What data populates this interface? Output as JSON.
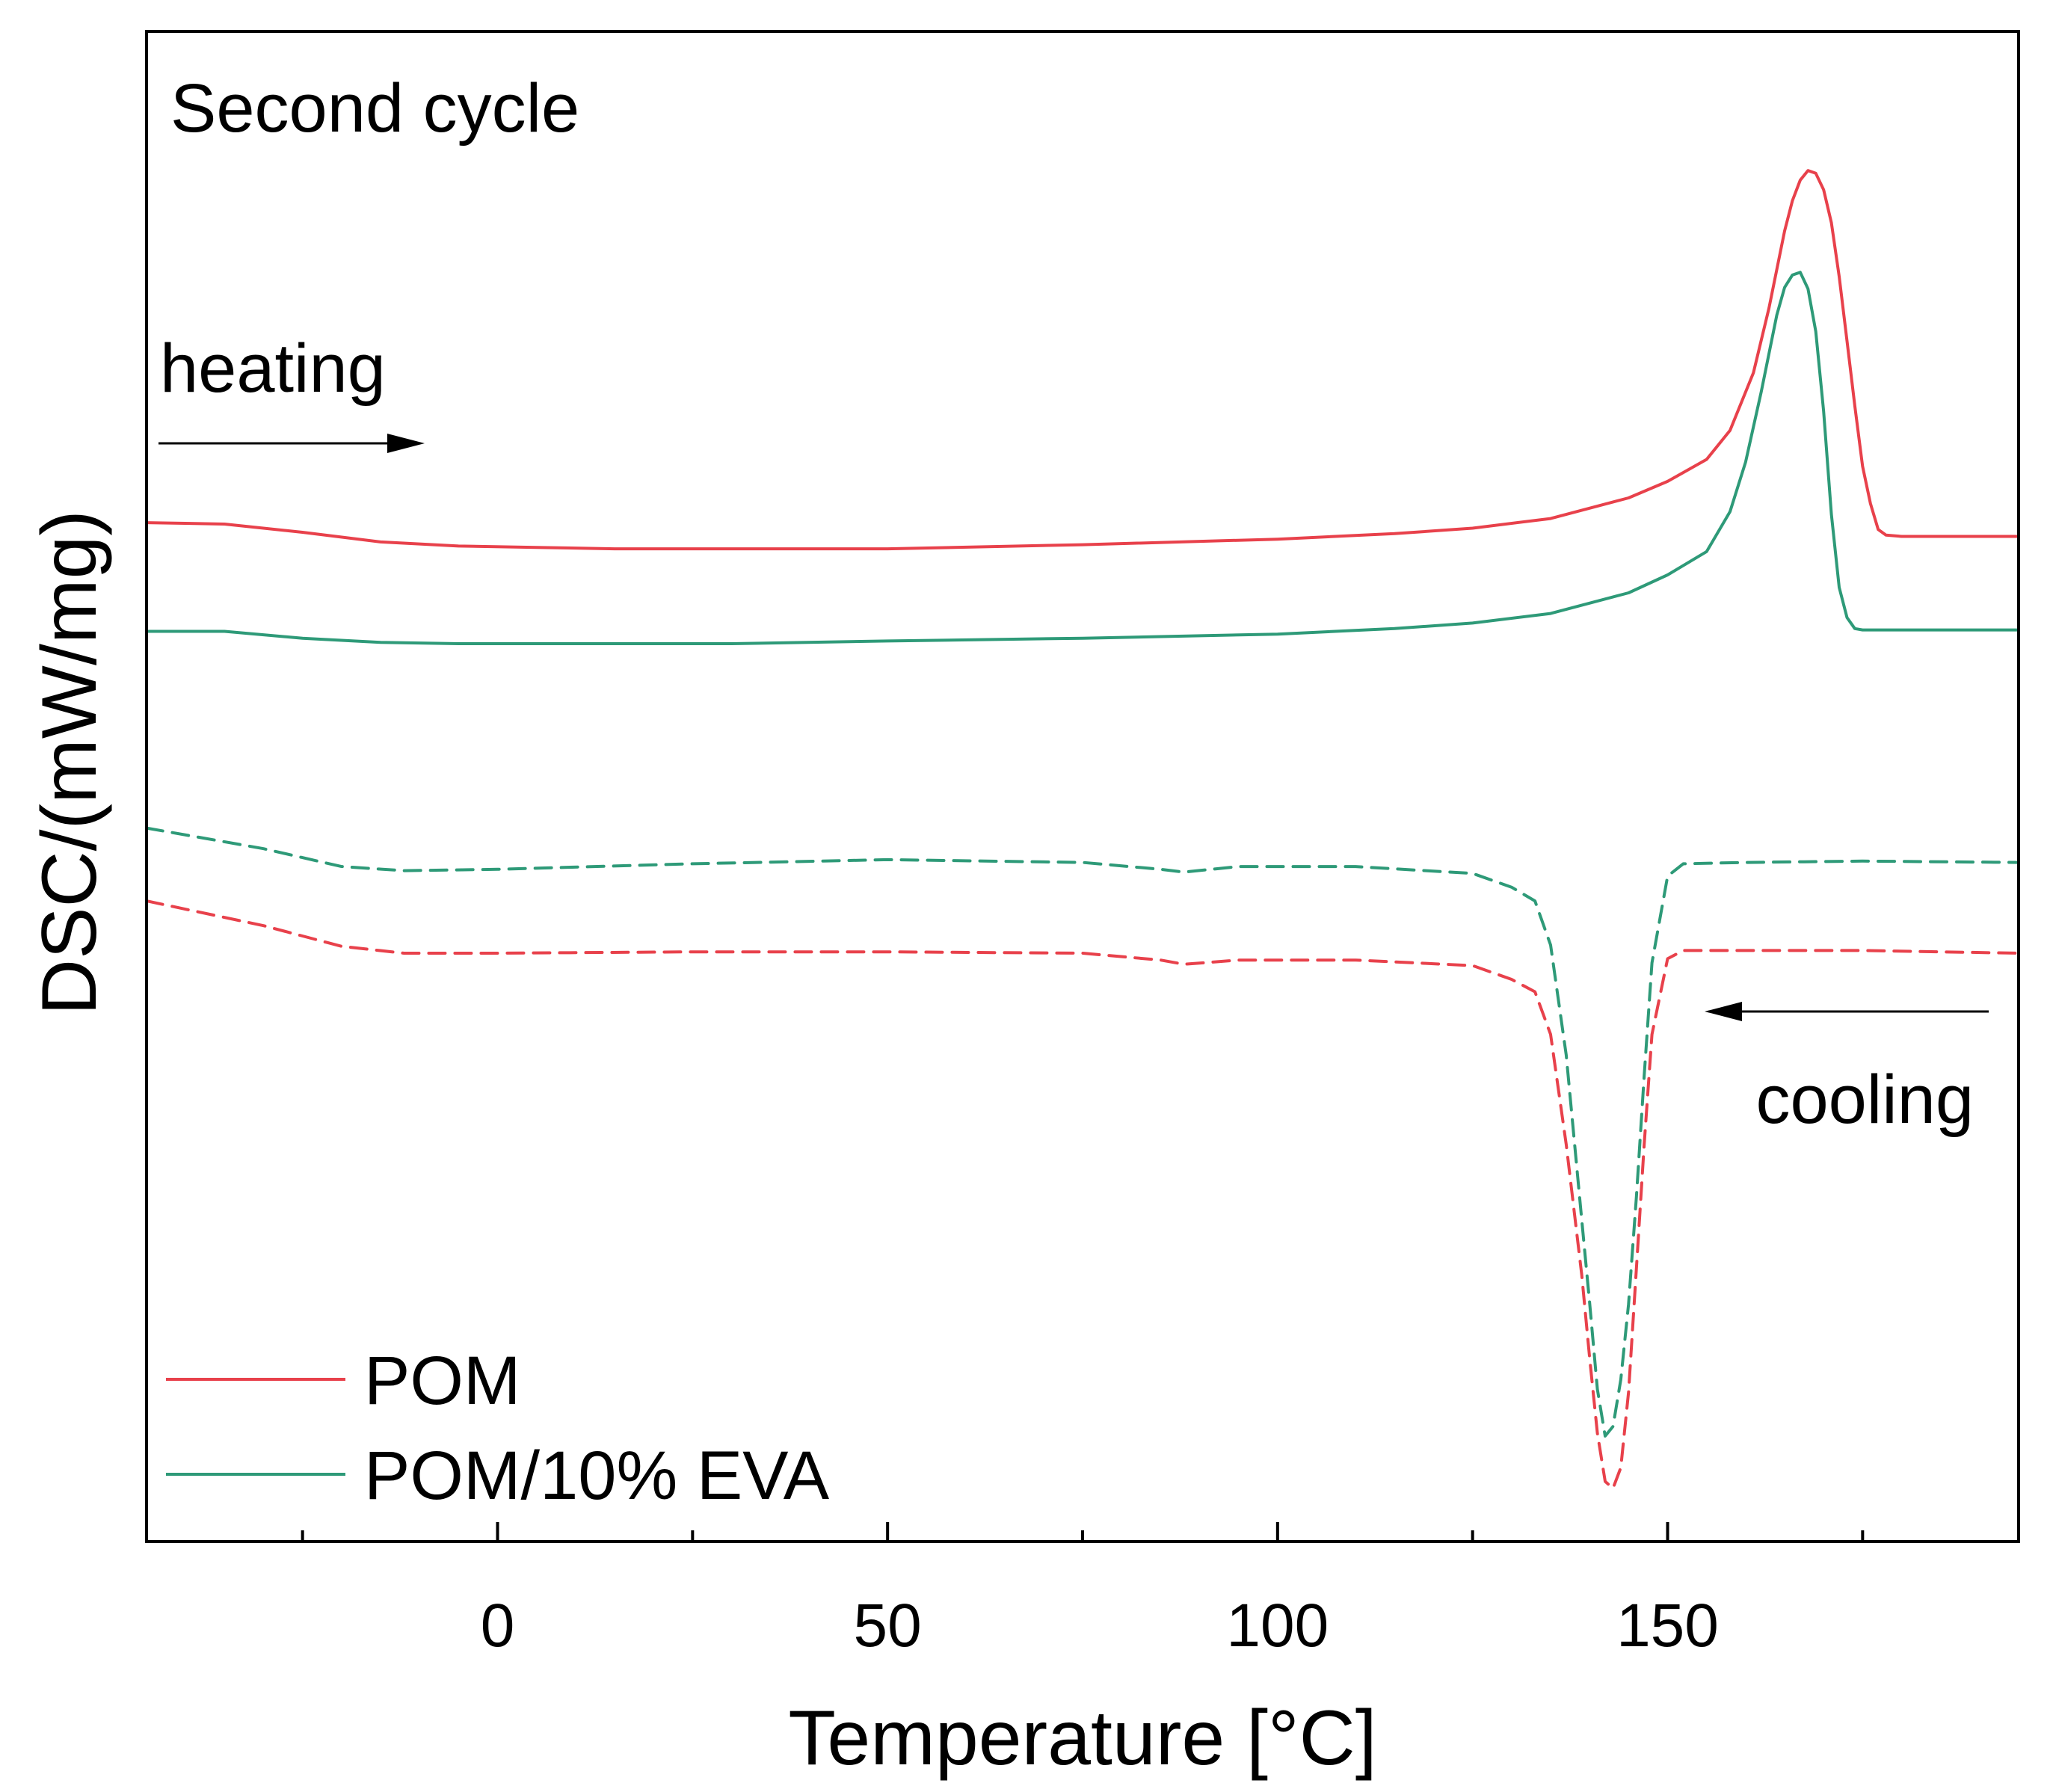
{
  "chart_data": {
    "type": "line",
    "title": "Second cycle",
    "xlabel": "Temperature [°C]",
    "ylabel": "DSC/(mW/mg)",
    "xlim": [
      -45,
      195
    ],
    "ylim": [
      0,
      100
    ],
    "x_ticks": [
      0,
      50,
      100,
      150
    ],
    "x_tick_labels": [
      "0",
      "50",
      "100",
      "150"
    ],
    "x_minor_ticks": [
      -25,
      25,
      75,
      125,
      175
    ],
    "y_ticks_shown": false,
    "grid": false,
    "legend_position": "bottom-left",
    "annotations": {
      "heating": "heating",
      "cooling": "cooling"
    },
    "series": [
      {
        "name": "POM",
        "segment": "heating",
        "style": "solid",
        "color": "#e8414b",
        "x": [
          -45,
          -35,
          -25,
          -15,
          -5,
          5,
          15,
          30,
          50,
          75,
          100,
          115,
          125,
          135,
          145,
          150,
          155,
          158,
          161,
          163,
          165,
          166,
          167,
          168,
          169,
          170,
          171,
          172,
          173,
          174,
          175,
          176,
          177,
          178,
          180,
          185,
          195
        ],
        "y": [
          70.7,
          70.6,
          70.0,
          69.3,
          69.0,
          68.9,
          68.8,
          68.8,
          68.8,
          69.1,
          69.5,
          69.9,
          70.3,
          71.0,
          72.5,
          73.7,
          75.3,
          77.4,
          81.6,
          86.3,
          91.9,
          94.1,
          95.6,
          96.3,
          96.1,
          94.9,
          92.5,
          88.6,
          83.9,
          79.2,
          74.8,
          72.1,
          70.2,
          69.8,
          69.7,
          69.7,
          69.7
        ]
      },
      {
        "name": "POM/10% EVA",
        "segment": "heating",
        "style": "solid",
        "color": "#2e9a78",
        "x": [
          -45,
          -35,
          -25,
          -15,
          -5,
          5,
          15,
          30,
          50,
          75,
          100,
          115,
          125,
          135,
          145,
          150,
          155,
          158,
          160,
          162,
          164,
          165,
          166,
          167,
          168,
          169,
          170,
          171,
          172,
          173,
          174,
          175,
          180,
          185,
          195
        ],
        "y": [
          62.8,
          62.8,
          62.3,
          62.0,
          61.9,
          61.9,
          61.9,
          61.9,
          62.1,
          62.3,
          62.6,
          63.0,
          63.4,
          64.1,
          65.6,
          66.9,
          68.6,
          71.5,
          75.1,
          80.2,
          85.8,
          87.8,
          88.7,
          88.9,
          87.7,
          84.6,
          78.8,
          71.3,
          66.0,
          63.8,
          63.0,
          62.9,
          62.9,
          62.9,
          62.9
        ]
      },
      {
        "name": "POM/10% EVA",
        "segment": "cooling",
        "style": "dashed",
        "color": "#2e9a78",
        "x": [
          -45,
          -30,
          -20,
          -12,
          0,
          25,
          50,
          75,
          85,
          88,
          95,
          110,
          125,
          130,
          133,
          135,
          137,
          139,
          140,
          141,
          142,
          143,
          144,
          145,
          146,
          147,
          148,
          150,
          152,
          160,
          175,
          195
        ],
        "y": [
          48.5,
          47.0,
          45.7,
          45.4,
          45.5,
          45.9,
          46.2,
          46.0,
          45.5,
          45.3,
          45.7,
          45.7,
          45.2,
          44.2,
          43.2,
          40.0,
          32.0,
          20.0,
          14.0,
          7.7,
          4.3,
          5.0,
          8.4,
          13.9,
          21.7,
          30.5,
          38.7,
          45.0,
          45.9,
          46.0,
          46.1,
          46.0
        ]
      },
      {
        "name": "POM",
        "segment": "cooling",
        "style": "dashed",
        "color": "#e8414b",
        "x": [
          -45,
          -30,
          -20,
          -12,
          0,
          25,
          50,
          75,
          85,
          88,
          95,
          110,
          125,
          130,
          133,
          135,
          137,
          139,
          140,
          141,
          142,
          143,
          144,
          145,
          146,
          147,
          148,
          150,
          152,
          160,
          175,
          195
        ],
        "y": [
          43.2,
          41.4,
          39.9,
          39.4,
          39.4,
          39.5,
          39.5,
          39.4,
          38.9,
          38.6,
          38.9,
          38.9,
          38.5,
          37.5,
          36.6,
          33.5,
          25.5,
          16.0,
          10.0,
          4.5,
          1.0,
          0.5,
          2.0,
          7.5,
          16.5,
          25.5,
          33.5,
          39.0,
          39.6,
          39.6,
          39.6,
          39.4
        ]
      }
    ],
    "legend": [
      {
        "label": "POM",
        "color": "#e8414b"
      },
      {
        "label": "POM/10% EVA",
        "color": "#2e9a78"
      }
    ]
  }
}
